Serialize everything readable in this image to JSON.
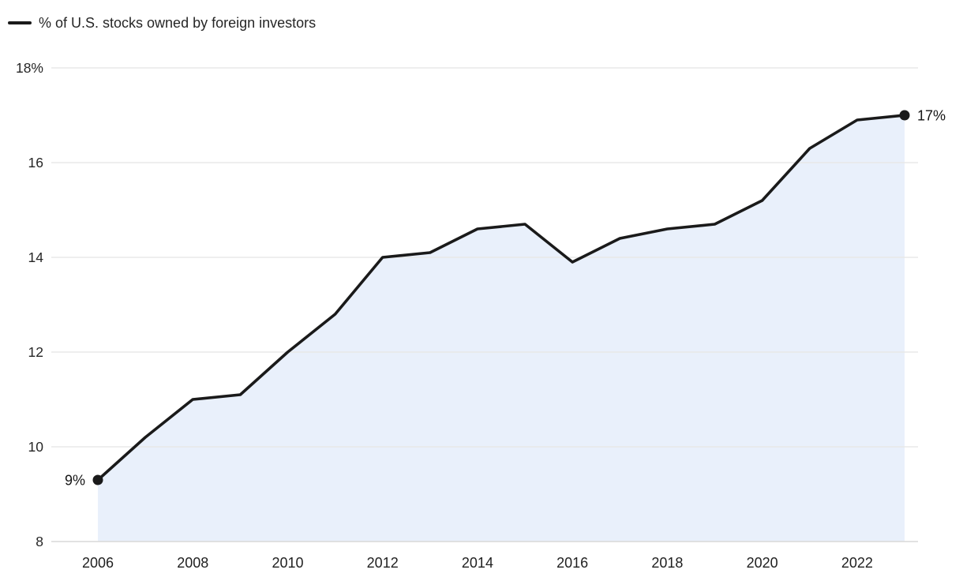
{
  "chart_data": {
    "type": "area",
    "title": "",
    "legend": "% of U.S. stocks owned by foreign investors",
    "legend_position": "top-left",
    "grid": "horizontal",
    "x": [
      2006,
      2007,
      2008,
      2009,
      2010,
      2011,
      2012,
      2013,
      2014,
      2015,
      2016,
      2017,
      2018,
      2019,
      2020,
      2021,
      2022,
      2023
    ],
    "values": [
      9.3,
      10.2,
      11.0,
      11.1,
      12.0,
      12.8,
      14.0,
      14.1,
      14.6,
      14.7,
      13.9,
      14.4,
      14.6,
      14.7,
      15.2,
      16.3,
      16.9,
      17.0
    ],
    "xlim": [
      2006,
      2023
    ],
    "ylim": [
      8,
      18
    ],
    "y_ticks": [
      {
        "value": 18,
        "label": "18%"
      },
      {
        "value": 16,
        "label": "16"
      },
      {
        "value": 14,
        "label": "14"
      },
      {
        "value": 12,
        "label": "12"
      },
      {
        "value": 10,
        "label": "10"
      },
      {
        "value": 8,
        "label": "8"
      }
    ],
    "x_ticks": [
      {
        "value": 2006,
        "label": "2006"
      },
      {
        "value": 2008,
        "label": "2008"
      },
      {
        "value": 2010,
        "label": "2010"
      },
      {
        "value": 2012,
        "label": "2012"
      },
      {
        "value": 2014,
        "label": "2014"
      },
      {
        "value": 2016,
        "label": "2016"
      },
      {
        "value": 2018,
        "label": "2018"
      },
      {
        "value": 2020,
        "label": "2020"
      },
      {
        "value": 2022,
        "label": "2022"
      }
    ],
    "annotations": [
      {
        "at": 2006,
        "text": "9%",
        "side": "left"
      },
      {
        "at": 2023,
        "text": "17%",
        "side": "right"
      }
    ],
    "endpoint_markers": true,
    "colors": {
      "line": "#1a1a1a",
      "fill": "#e9f0fb",
      "grid": "#e8e8e8",
      "baseline": "#d8d8d8",
      "dot": "#1a1a1a",
      "tick_text": "#262626",
      "annotation_text": "#141414"
    }
  }
}
